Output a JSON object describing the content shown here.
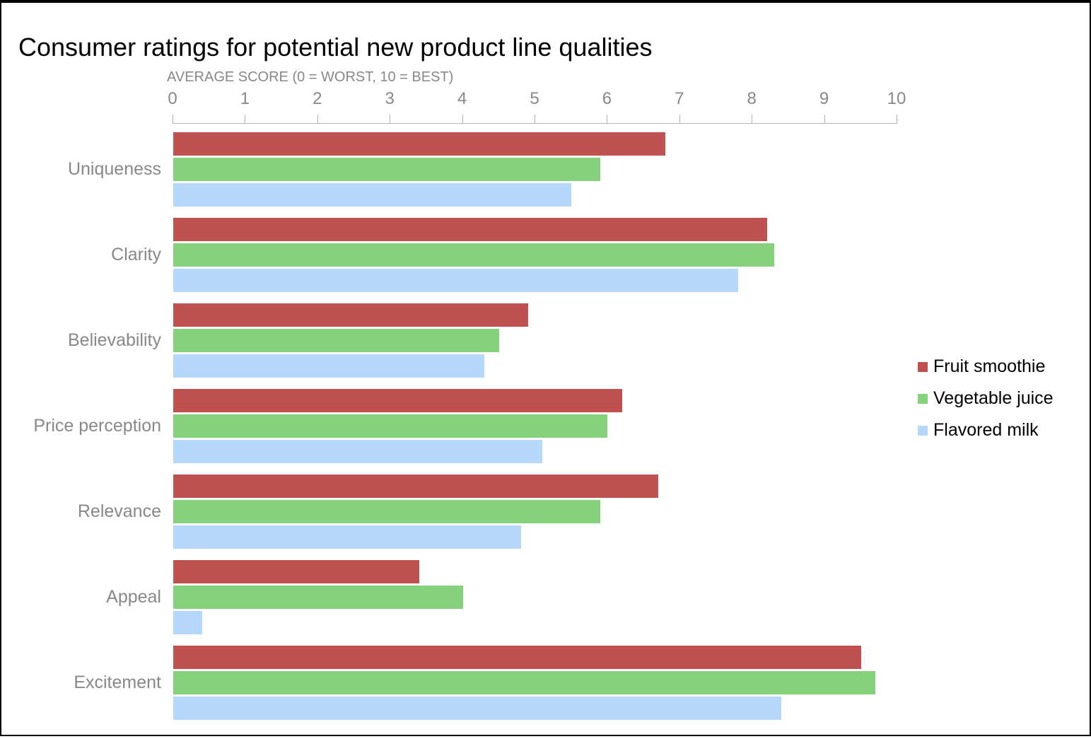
{
  "page": {
    "title": "Consumer ratings for potential new product line qualities"
  },
  "chart_data": {
    "type": "bar",
    "orientation": "horizontal",
    "title": "Consumer ratings for potential new product line qualities",
    "axis_title": "AVERAGE SCORE (0 = WORST, 10 = BEST)",
    "categories": [
      "Uniqueness",
      "Clarity",
      "Believability",
      "Price perception",
      "Relevance",
      "Appeal",
      "Excitement"
    ],
    "series": [
      {
        "name": "Fruit smoothie",
        "color": "#bf5150",
        "values": [
          6.8,
          8.2,
          4.9,
          6.2,
          6.7,
          3.4,
          9.5
        ]
      },
      {
        "name": "Vegetable juice",
        "color": "#85d17c",
        "values": [
          5.9,
          8.3,
          4.5,
          6.0,
          5.9,
          4.0,
          9.7
        ]
      },
      {
        "name": "Flavored milk",
        "color": "#b6d9fb",
        "values": [
          5.5,
          7.8,
          4.3,
          5.1,
          4.8,
          0.4,
          8.4
        ]
      }
    ],
    "xlim": [
      0,
      10
    ],
    "tick_step": 1,
    "tick_labels": [
      "0",
      "1",
      "2",
      "3",
      "4",
      "5",
      "6",
      "7",
      "8",
      "9",
      "10"
    ],
    "grid": false,
    "legend_position": "right"
  },
  "colors": {
    "background": "#ffffff",
    "title_text": "#000000",
    "muted_text": "#888888",
    "axis_line": "#b3b3b3"
  }
}
